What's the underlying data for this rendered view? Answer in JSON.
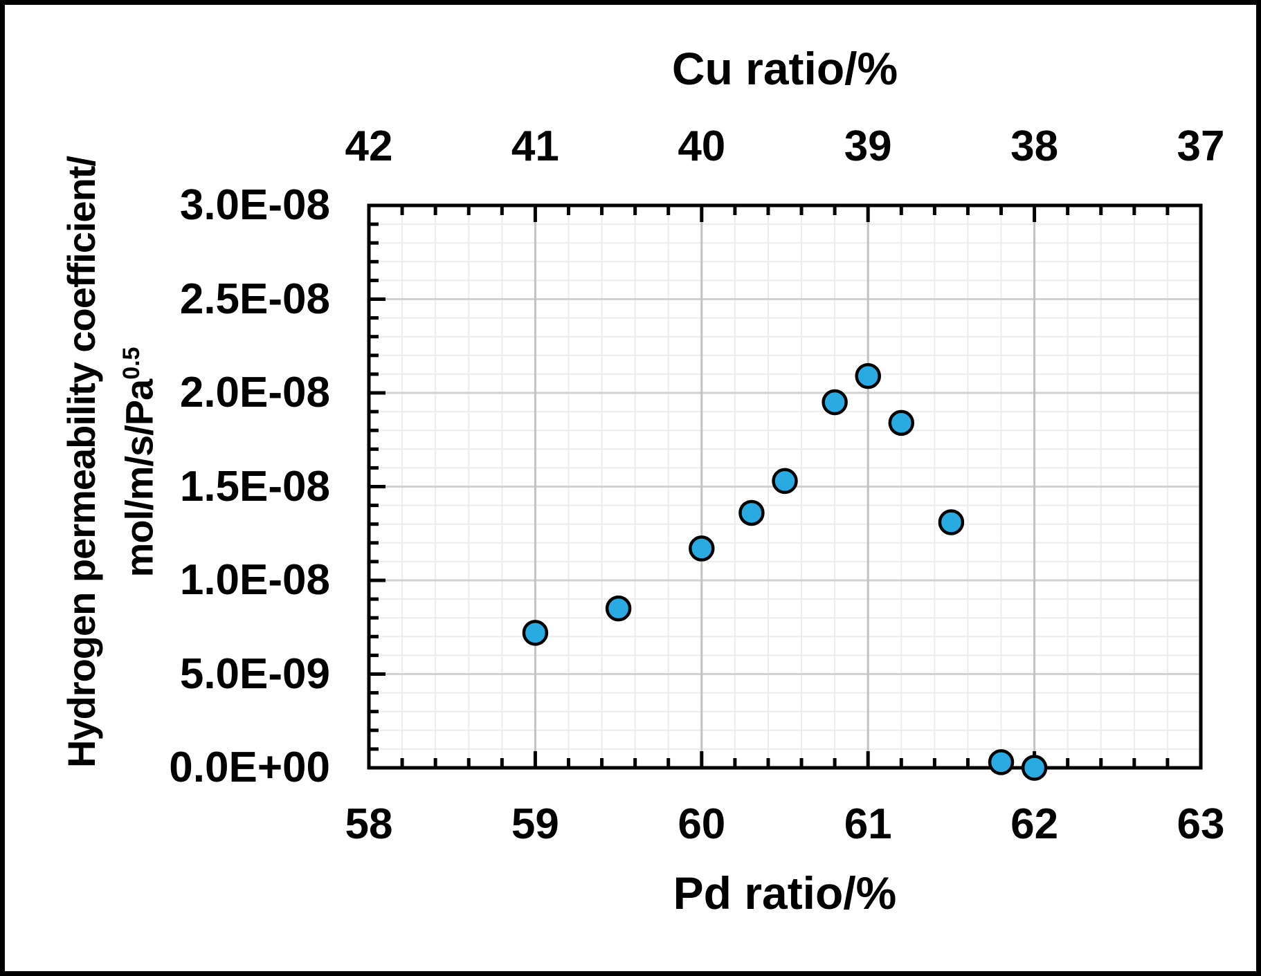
{
  "figure": {
    "top_axis_title": "Cu ratio/%",
    "bottom_axis_title": "Pd ratio/%",
    "y_axis_title_line1": "Hydrogen permeability coefficient/",
    "y_axis_title_line2_base": "mol/m/s/Pa",
    "y_axis_title_line2_sup": "0.5"
  },
  "colors": {
    "background": "#FFFFFF",
    "axis": "#000000",
    "grid_minor": "#ECECEC",
    "grid_major_h": "#D2D2D2",
    "grid_major_v": "#C2C2C2",
    "marker_fill": "#29ABE2",
    "marker_stroke": "#000000"
  },
  "chart_data": {
    "type": "scatter",
    "x_axis_bottom": {
      "label": "Pd ratio/%",
      "min": 58,
      "max": 63,
      "minor_step": 0.2,
      "ticks": [
        {
          "v": 58,
          "label": "58"
        },
        {
          "v": 59,
          "label": "59"
        },
        {
          "v": 60,
          "label": "60"
        },
        {
          "v": 61,
          "label": "61"
        },
        {
          "v": 62,
          "label": "62"
        },
        {
          "v": 63,
          "label": "63"
        }
      ]
    },
    "x_axis_top": {
      "label": "Cu ratio/%",
      "ticks": [
        {
          "pd_position": 58,
          "label": "42"
        },
        {
          "pd_position": 59,
          "label": "41"
        },
        {
          "pd_position": 60,
          "label": "40"
        },
        {
          "pd_position": 61,
          "label": "39"
        },
        {
          "pd_position": 62,
          "label": "38"
        },
        {
          "pd_position": 63,
          "label": "37"
        }
      ]
    },
    "y_axis": {
      "label": "Hydrogen permeability coefficient/ mol/m/s/Pa^0.5",
      "min": 0,
      "max": 3e-08,
      "minor_step": 1e-09,
      "ticks": [
        {
          "v": 0,
          "label": "0.0E+00"
        },
        {
          "v": 5e-09,
          "label": "5.0E-09"
        },
        {
          "v": 1e-08,
          "label": "1.0E-08"
        },
        {
          "v": 1.5e-08,
          "label": "1.5E-08"
        },
        {
          "v": 2e-08,
          "label": "2.0E-08"
        },
        {
          "v": 2.5e-08,
          "label": "2.5E-08"
        },
        {
          "v": 3e-08,
          "label": "3.0E-08"
        }
      ]
    },
    "series": [
      {
        "name": "hydrogen-permeability-vs-composition",
        "marker": "circle",
        "points": [
          {
            "pd": 59.0,
            "cu": 41.0,
            "y": 7.2e-09
          },
          {
            "pd": 59.5,
            "cu": 40.5,
            "y": 8.5e-09
          },
          {
            "pd": 60.0,
            "cu": 40.0,
            "y": 1.17e-08
          },
          {
            "pd": 60.3,
            "cu": 39.7,
            "y": 1.36e-08
          },
          {
            "pd": 60.5,
            "cu": 39.5,
            "y": 1.53e-08
          },
          {
            "pd": 60.8,
            "cu": 39.2,
            "y": 1.95e-08
          },
          {
            "pd": 61.0,
            "cu": 39.0,
            "y": 2.09e-08
          },
          {
            "pd": 61.2,
            "cu": 38.8,
            "y": 1.84e-08
          },
          {
            "pd": 61.5,
            "cu": 38.5,
            "y": 1.31e-08
          },
          {
            "pd": 61.8,
            "cu": 38.2,
            "y": 3e-10
          },
          {
            "pd": 62.0,
            "cu": 38.0,
            "y": 0
          }
        ]
      }
    ]
  }
}
